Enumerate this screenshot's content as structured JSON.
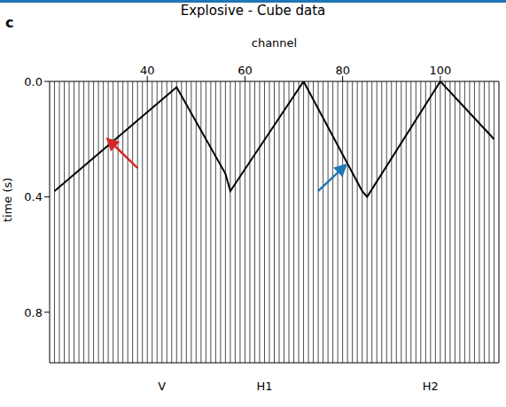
{
  "chart_data": {
    "type": "wiggle",
    "panel": "c",
    "title": "Explosive - Cube data",
    "x_label": "channel",
    "y_label": "time (s)",
    "xlim": [
      20,
      112
    ],
    "xticks": [
      40,
      60,
      80,
      100
    ],
    "ylim": [
      0,
      0.975
    ],
    "yticks": [
      {
        "value": 0,
        "label": "0.0"
      },
      {
        "value": 0.4,
        "label": "0.4"
      },
      {
        "value": 0.8,
        "label": "0.8"
      }
    ],
    "channels": [
      21,
      22,
      23,
      24,
      25,
      26,
      27,
      28,
      29,
      30,
      31,
      32,
      33,
      34,
      35,
      36,
      37,
      38,
      39,
      40,
      41,
      42,
      43,
      44,
      45,
      46,
      47,
      48,
      49,
      50,
      51,
      52,
      53,
      54,
      55,
      56,
      57,
      58,
      59,
      60,
      61,
      62,
      63,
      64,
      65,
      66,
      67,
      68,
      69,
      70,
      71,
      72,
      73,
      74,
      75,
      76,
      77,
      78,
      79,
      80,
      81,
      82,
      83,
      84,
      85,
      86,
      87,
      88,
      89,
      90,
      91,
      92,
      93,
      94,
      95,
      96,
      97,
      98,
      99,
      100,
      101,
      102,
      103,
      104,
      105,
      106,
      107,
      108,
      109,
      110,
      111
    ],
    "first_arrival": {
      "x": [
        21,
        46,
        56,
        57,
        72,
        84,
        85,
        100,
        111
      ],
      "t": [
        0.38,
        0.02,
        0.32,
        0.38,
        0.0,
        0.38,
        0.4,
        0.0,
        0.2
      ]
    },
    "components": [
      {
        "label": "V",
        "center": 43
      },
      {
        "label": "H1",
        "center": 64
      },
      {
        "label": "H2",
        "center": 98
      }
    ],
    "annotations": [
      {
        "type": "arrow",
        "color": "#d62728",
        "from": [
          38,
          0.3
        ],
        "to": [
          32.5,
          0.21
        ]
      },
      {
        "type": "arrow",
        "color": "#1f77b4",
        "from": [
          75,
          0.38
        ],
        "to": [
          80,
          0.3
        ]
      }
    ]
  }
}
